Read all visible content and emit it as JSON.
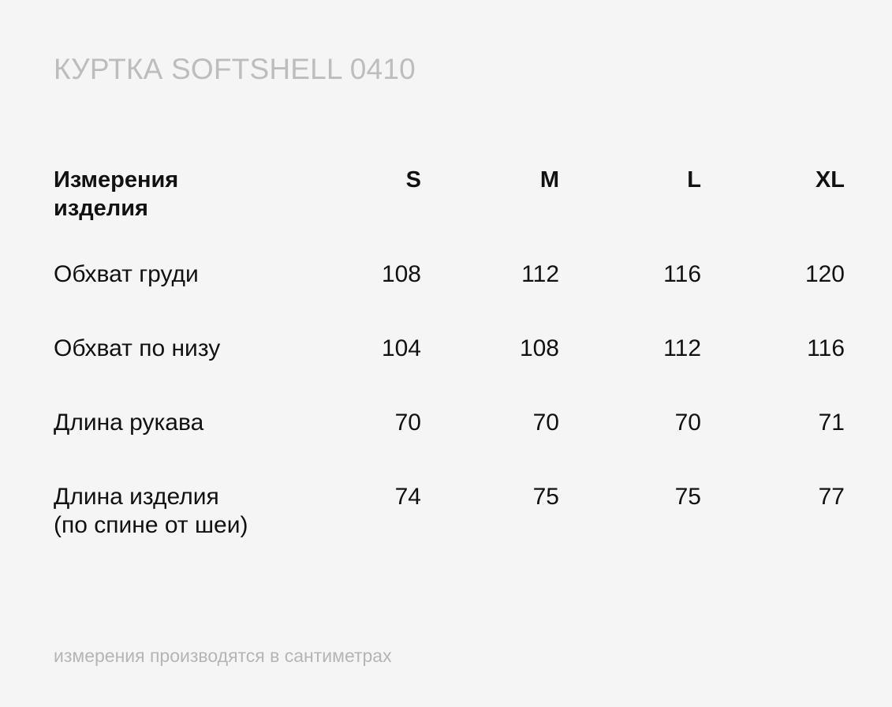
{
  "title": "КУРТКА SOFTSHELL 0410",
  "table": {
    "header": {
      "label": "Измерения\nизделия",
      "sizes": [
        "S",
        "M",
        "L",
        "XL"
      ]
    },
    "rows": [
      {
        "label": "Обхват груди",
        "values": [
          "108",
          "112",
          "116",
          "120"
        ]
      },
      {
        "label": "Обхват по низу",
        "values": [
          "104",
          "108",
          "112",
          "116"
        ]
      },
      {
        "label": "Длина рукава",
        "values": [
          "70",
          "70",
          "70",
          "71"
        ]
      },
      {
        "label": "Длина изделия\n(по спине от шеи)",
        "values": [
          "74",
          "75",
          "75",
          "77"
        ]
      }
    ]
  },
  "footnote": "измерения производятся в сантиметрах",
  "colors": {
    "background": "#f5f5f5",
    "text": "#111111",
    "muted": "#bdbdbd"
  }
}
